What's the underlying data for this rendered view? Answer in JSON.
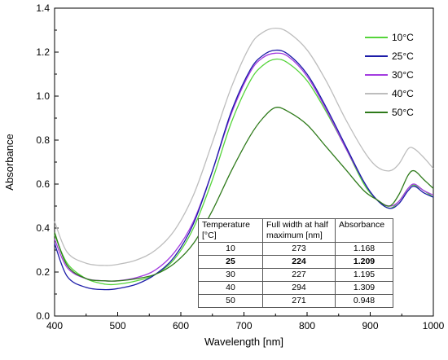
{
  "chart_data": {
    "type": "line",
    "xlabel": "Wavelength [nm]",
    "ylabel": "Absorbance",
    "xlim": [
      400,
      1000
    ],
    "ylim": [
      0.0,
      1.4
    ],
    "xticks": [
      "400",
      "500",
      "600",
      "700",
      "800",
      "900",
      "1000"
    ],
    "yticks": [
      "0.0",
      "0.2",
      "0.4",
      "0.6",
      "0.8",
      "1.0",
      "1.2",
      "1.4"
    ],
    "legend_position": "top-right",
    "series": [
      {
        "name": "10°C",
        "color": "#55d43a",
        "x": [
          400,
          420,
          450,
          480,
          500,
          530,
          560,
          590,
          620,
          650,
          680,
          710,
          730,
          750,
          770,
          800,
          830,
          860,
          890,
          910,
          930,
          945,
          960,
          970,
          985,
          1000
        ],
        "y": [
          0.37,
          0.24,
          0.17,
          0.145,
          0.145,
          0.16,
          0.19,
          0.26,
          0.4,
          0.62,
          0.88,
          1.07,
          1.14,
          1.168,
          1.15,
          1.07,
          0.93,
          0.77,
          0.6,
          0.53,
          0.49,
          0.52,
          0.58,
          0.595,
          0.57,
          0.54
        ]
      },
      {
        "name": "25°C",
        "color": "#1c1ca8",
        "x": [
          400,
          420,
          450,
          480,
          500,
          530,
          560,
          590,
          620,
          650,
          680,
          710,
          730,
          750,
          770,
          800,
          830,
          860,
          890,
          910,
          930,
          945,
          960,
          970,
          985,
          1000
        ],
        "y": [
          0.33,
          0.18,
          0.13,
          0.12,
          0.125,
          0.145,
          0.19,
          0.27,
          0.42,
          0.66,
          0.93,
          1.12,
          1.185,
          1.209,
          1.19,
          1.1,
          0.95,
          0.78,
          0.61,
          0.53,
          0.49,
          0.51,
          0.57,
          0.59,
          0.56,
          0.54
        ]
      },
      {
        "name": "30°C",
        "color": "#a33be0",
        "x": [
          400,
          420,
          450,
          480,
          500,
          530,
          560,
          590,
          620,
          650,
          680,
          710,
          730,
          750,
          770,
          800,
          830,
          860,
          890,
          910,
          930,
          945,
          960,
          970,
          985,
          1000
        ],
        "y": [
          0.35,
          0.22,
          0.17,
          0.16,
          0.16,
          0.175,
          0.21,
          0.29,
          0.43,
          0.66,
          0.92,
          1.11,
          1.175,
          1.195,
          1.18,
          1.09,
          0.94,
          0.77,
          0.61,
          0.53,
          0.5,
          0.52,
          0.58,
          0.6,
          0.57,
          0.55
        ]
      },
      {
        "name": "40°C",
        "color": "#bdbdbd",
        "x": [
          400,
          420,
          450,
          480,
          500,
          530,
          560,
          590,
          620,
          650,
          680,
          710,
          730,
          750,
          770,
          800,
          830,
          860,
          890,
          910,
          930,
          945,
          960,
          970,
          985,
          1000
        ],
        "y": [
          0.43,
          0.29,
          0.24,
          0.23,
          0.235,
          0.255,
          0.3,
          0.39,
          0.55,
          0.79,
          1.04,
          1.23,
          1.29,
          1.309,
          1.29,
          1.21,
          1.07,
          0.9,
          0.75,
          0.68,
          0.66,
          0.69,
          0.76,
          0.76,
          0.72,
          0.67
        ]
      },
      {
        "name": "50°C",
        "color": "#2e7a1a",
        "x": [
          400,
          420,
          450,
          480,
          500,
          530,
          560,
          590,
          620,
          650,
          680,
          710,
          730,
          750,
          770,
          800,
          830,
          860,
          890,
          910,
          930,
          945,
          960,
          970,
          985,
          1000
        ],
        "y": [
          0.38,
          0.23,
          0.17,
          0.16,
          0.16,
          0.17,
          0.19,
          0.24,
          0.33,
          0.48,
          0.66,
          0.82,
          0.9,
          0.948,
          0.93,
          0.87,
          0.77,
          0.67,
          0.57,
          0.53,
          0.5,
          0.55,
          0.64,
          0.66,
          0.62,
          0.58
        ]
      }
    ]
  },
  "table": {
    "headers": [
      "Temperature [°C]",
      "Full width at half maximum [nm]",
      "Absorbance"
    ],
    "rows": [
      {
        "temperature": "10",
        "fwhm": "273",
        "absorbance": "1.168",
        "bold": false
      },
      {
        "temperature": "25",
        "fwhm": "224",
        "absorbance": "1.209",
        "bold": true
      },
      {
        "temperature": "30",
        "fwhm": "227",
        "absorbance": "1.195",
        "bold": false
      },
      {
        "temperature": "40",
        "fwhm": "294",
        "absorbance": "1.309",
        "bold": false
      },
      {
        "temperature": "50",
        "fwhm": "271",
        "absorbance": "0.948",
        "bold": false
      }
    ]
  }
}
